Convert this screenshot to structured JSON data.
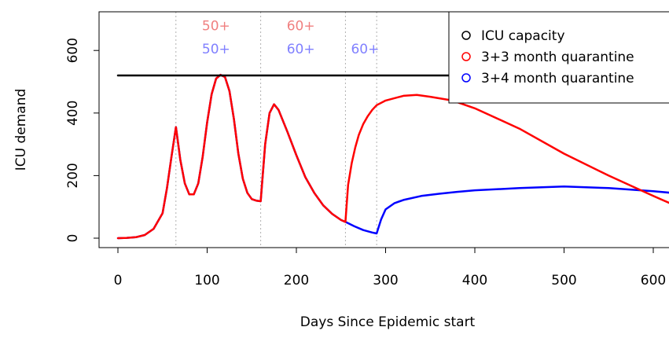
{
  "chart_data": {
    "type": "line",
    "xlabel": "Days Since Epidemic start",
    "ylabel": "ICU demand",
    "xlim": [
      0,
      620
    ],
    "ylim": [
      0,
      700
    ],
    "x_ticks": [
      0,
      100,
      200,
      300,
      400,
      500,
      600
    ],
    "x_tick_labels": [
      "0",
      "100",
      "200",
      "300",
      "400",
      "500",
      "600"
    ],
    "y_ticks": [
      0,
      200,
      400,
      600
    ],
    "y_tick_labels": [
      "0",
      "200",
      "400",
      "600"
    ],
    "grid": false,
    "legend_position": "top-right",
    "legend": [
      {
        "label": "ICU capacity",
        "color": "#000000"
      },
      {
        "label": "3+3 month quarantine",
        "color": "#ff0000"
      },
      {
        "label": "3+4 month quarantine",
        "color": "#0000ff"
      }
    ],
    "reference_lines": {
      "vertical_x": [
        65,
        160,
        255,
        290
      ],
      "horizontal": {
        "name": "ICU capacity",
        "y": 520,
        "x_start": 0,
        "x_end": 620
      }
    },
    "annotations": [
      {
        "text": "50+",
        "x": 110,
        "y": 665,
        "color": "#f08080"
      },
      {
        "text": "50+",
        "x": 110,
        "y": 590,
        "color": "#8080ff"
      },
      {
        "text": "60+",
        "x": 205,
        "y": 665,
        "color": "#f08080"
      },
      {
        "text": "60+",
        "x": 205,
        "y": 590,
        "color": "#8080ff"
      },
      {
        "text": "60+",
        "x": 277,
        "y": 590,
        "color": "#8080ff"
      }
    ],
    "series": [
      {
        "name": "3+4 month quarantine",
        "color": "#0000ff",
        "x": [
          0,
          10,
          20,
          30,
          40,
          50,
          55,
          60,
          65,
          70,
          75,
          80,
          85,
          90,
          95,
          100,
          105,
          110,
          115,
          120,
          125,
          130,
          135,
          140,
          145,
          150,
          155,
          160,
          165,
          170,
          175,
          180,
          190,
          200,
          210,
          220,
          230,
          240,
          250,
          255,
          265,
          275,
          285,
          290,
          295,
          300,
          310,
          320,
          340,
          360,
          380,
          400,
          450,
          500,
          550,
          600,
          620
        ],
        "y": [
          0,
          1,
          3,
          10,
          30,
          80,
          160,
          260,
          355,
          250,
          175,
          140,
          140,
          175,
          260,
          370,
          460,
          510,
          522,
          515,
          470,
          380,
          270,
          190,
          145,
          125,
          120,
          118,
          300,
          400,
          428,
          410,
          340,
          265,
          195,
          145,
          105,
          78,
          58,
          52,
          38,
          26,
          18,
          15,
          60,
          92,
          112,
          122,
          135,
          142,
          148,
          153,
          160,
          165,
          160,
          150,
          145
        ]
      },
      {
        "name": "3+3 month quarantine",
        "color": "#ff0000",
        "x": [
          0,
          10,
          20,
          30,
          40,
          50,
          55,
          60,
          65,
          70,
          75,
          80,
          85,
          90,
          95,
          100,
          105,
          110,
          115,
          120,
          125,
          130,
          135,
          140,
          145,
          150,
          155,
          160,
          165,
          170,
          175,
          180,
          190,
          200,
          210,
          220,
          230,
          240,
          250,
          255,
          258,
          262,
          266,
          270,
          275,
          280,
          285,
          290,
          300,
          320,
          335,
          350,
          375,
          400,
          450,
          500,
          550,
          600,
          620
        ],
        "y": [
          0,
          1,
          3,
          10,
          30,
          80,
          160,
          260,
          355,
          250,
          175,
          140,
          140,
          175,
          260,
          370,
          460,
          510,
          522,
          515,
          470,
          380,
          270,
          190,
          145,
          125,
          120,
          118,
          300,
          400,
          428,
          410,
          340,
          265,
          195,
          145,
          105,
          78,
          58,
          52,
          170,
          240,
          290,
          330,
          365,
          390,
          410,
          425,
          440,
          455,
          458,
          452,
          440,
          415,
          350,
          270,
          200,
          135,
          110
        ]
      },
      {
        "name": "ICU capacity",
        "color": "#000000",
        "x": [
          0,
          620
        ],
        "y": [
          520,
          520
        ]
      }
    ]
  }
}
